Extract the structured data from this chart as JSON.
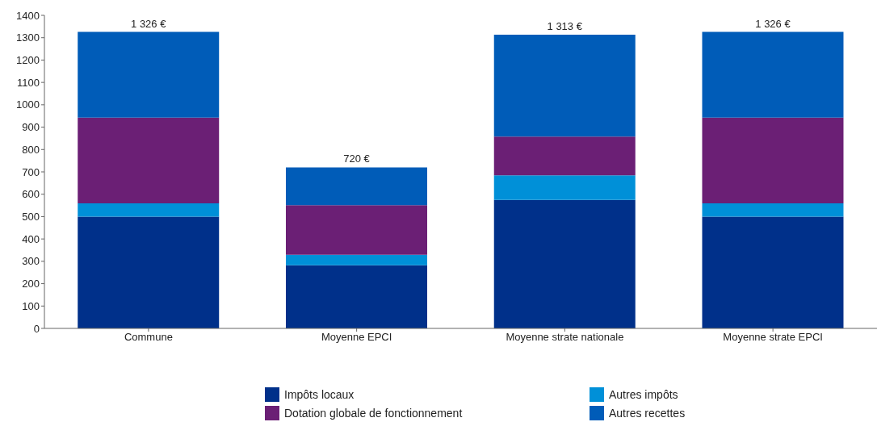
{
  "chart_data": {
    "type": "bar",
    "stacked": true,
    "categories": [
      "Commune",
      "Moyenne EPCI",
      "Moyenne strate nationale",
      "Moyenne strate EPCI"
    ],
    "series": [
      {
        "name": "Impôts locaux",
        "color": "#00308a",
        "values": [
          500,
          282,
          575,
          500
        ]
      },
      {
        "name": "Autres impôts",
        "color": "#0090d8",
        "values": [
          59,
          47,
          110,
          59
        ]
      },
      {
        "name": "Dotation globale de fonctionnement",
        "color": "#6b1f75",
        "values": [
          384,
          222,
          173,
          384
        ]
      },
      {
        "name": "Autres recettes",
        "color": "#005cb8",
        "values": [
          383,
          169,
          455,
          383
        ]
      }
    ],
    "ylim": [
      0,
      1400
    ],
    "yticks": [
      0,
      100,
      200,
      300,
      400,
      500,
      600,
      700,
      800,
      900,
      1000,
      1100,
      1200,
      1300,
      1400
    ],
    "totals": [
      "1 326 €",
      "720 €",
      "1 313 €",
      "1 326 €"
    ],
    "legend": "bottom"
  }
}
